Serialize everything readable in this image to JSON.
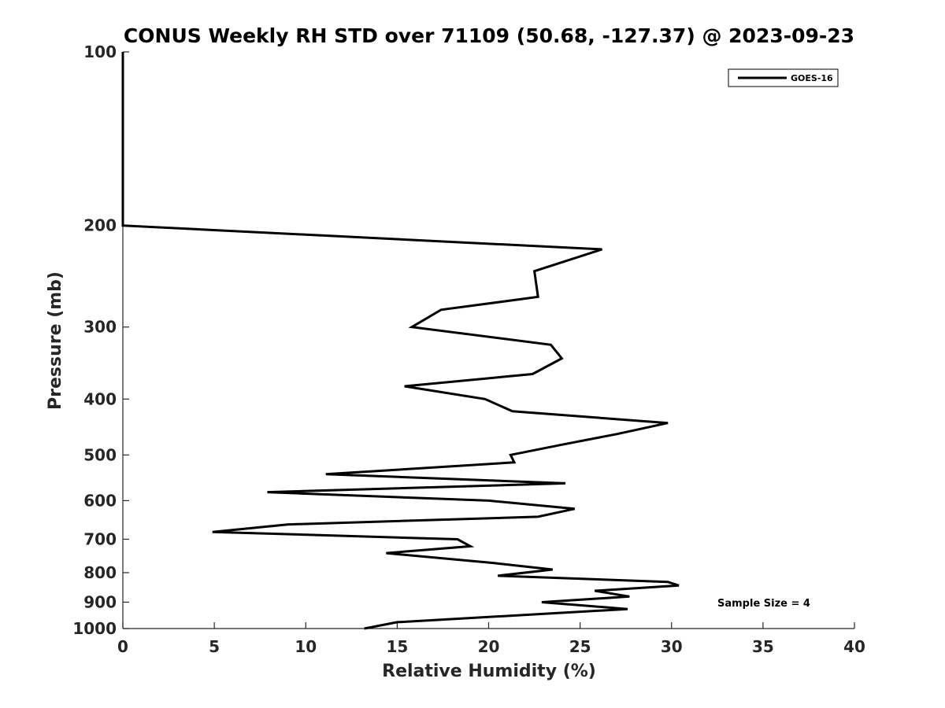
{
  "chart_data": {
    "type": "line",
    "title": "CONUS Weekly RH STD over 71109 (50.68, -127.37) @ 2023-09-23",
    "xlabel": "Relative Humidity (%)",
    "ylabel": "Pressure (mb)",
    "xlim": [
      0,
      40
    ],
    "ylim": [
      1000,
      100
    ],
    "yscale": "log",
    "xticks": [
      0,
      5,
      10,
      15,
      20,
      25,
      30,
      35,
      40
    ],
    "yticks": [
      100,
      200,
      300,
      400,
      500,
      600,
      700,
      800,
      900,
      1000
    ],
    "grid": false,
    "legend_position": "top-right",
    "annotation": "Sample Size = 4",
    "series": [
      {
        "name": "GOES-16",
        "color": "#000000",
        "points": [
          {
            "x": 0,
            "y": 100
          },
          {
            "x": 0,
            "y": 200
          },
          {
            "x": 26.2,
            "y": 220
          },
          {
            "x": 22.5,
            "y": 240
          },
          {
            "x": 22.7,
            "y": 266
          },
          {
            "x": 17.4,
            "y": 280
          },
          {
            "x": 15.8,
            "y": 300
          },
          {
            "x": 23.4,
            "y": 322
          },
          {
            "x": 24.0,
            "y": 340
          },
          {
            "x": 22.4,
            "y": 362
          },
          {
            "x": 15.4,
            "y": 380
          },
          {
            "x": 19.8,
            "y": 400
          },
          {
            "x": 21.3,
            "y": 420
          },
          {
            "x": 29.8,
            "y": 440
          },
          {
            "x": 27.0,
            "y": 460
          },
          {
            "x": 24.0,
            "y": 480
          },
          {
            "x": 21.2,
            "y": 500
          },
          {
            "x": 21.4,
            "y": 515
          },
          {
            "x": 11.1,
            "y": 540
          },
          {
            "x": 24.2,
            "y": 560
          },
          {
            "x": 7.9,
            "y": 580
          },
          {
            "x": 20.0,
            "y": 600
          },
          {
            "x": 24.7,
            "y": 620
          },
          {
            "x": 22.7,
            "y": 640
          },
          {
            "x": 9.0,
            "y": 660
          },
          {
            "x": 4.9,
            "y": 680
          },
          {
            "x": 18.3,
            "y": 700
          },
          {
            "x": 19.0,
            "y": 720
          },
          {
            "x": 14.4,
            "y": 740
          },
          {
            "x": 20.3,
            "y": 770
          },
          {
            "x": 23.5,
            "y": 790
          },
          {
            "x": 20.5,
            "y": 810
          },
          {
            "x": 29.8,
            "y": 830
          },
          {
            "x": 30.4,
            "y": 842
          },
          {
            "x": 25.8,
            "y": 860
          },
          {
            "x": 27.7,
            "y": 880
          },
          {
            "x": 22.9,
            "y": 900
          },
          {
            "x": 27.6,
            "y": 925
          },
          {
            "x": 15.0,
            "y": 975
          },
          {
            "x": 13.2,
            "y": 1000
          }
        ]
      }
    ]
  }
}
